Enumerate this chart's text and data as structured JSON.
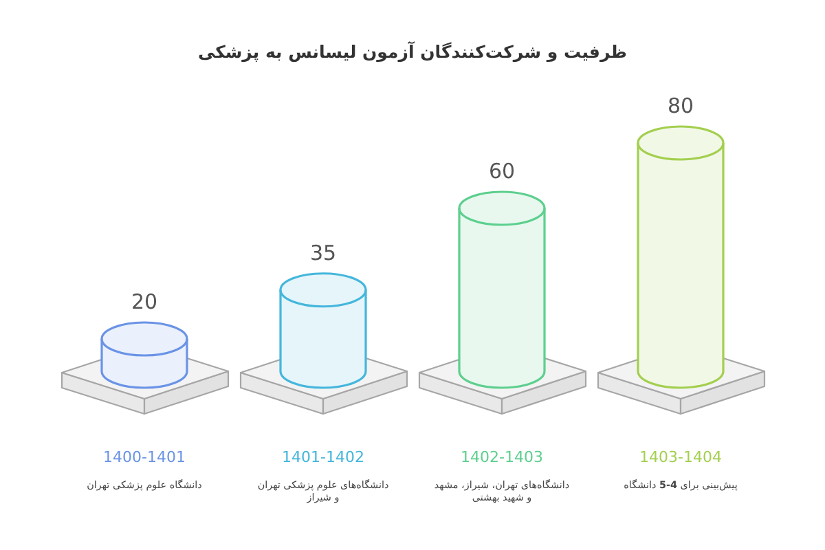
{
  "chart_data": {
    "type": "bar",
    "title": "ظرفیت و شرکت‌کنندگان آزمون لیسانس به پزشکی",
    "categories": [
      "1400-1401",
      "1401-1402",
      "1402-1403",
      "1403-1404"
    ],
    "values": [
      20,
      35,
      60,
      80
    ],
    "colors": [
      "#6a93e6",
      "#45b6dc",
      "#5dcf8e",
      "#a3cf4f"
    ],
    "data_labels": true,
    "annotations": [
      "دانشگاه علوم پزشکی تهران",
      "دانشگاه‌های علوم پزشکی تهران و شیراز",
      "دانشگاه‌های تهران، شیراز، مشهد و شهید بهشتی",
      "پیش‌بینی برای **4-5** دانشگاه"
    ]
  }
}
